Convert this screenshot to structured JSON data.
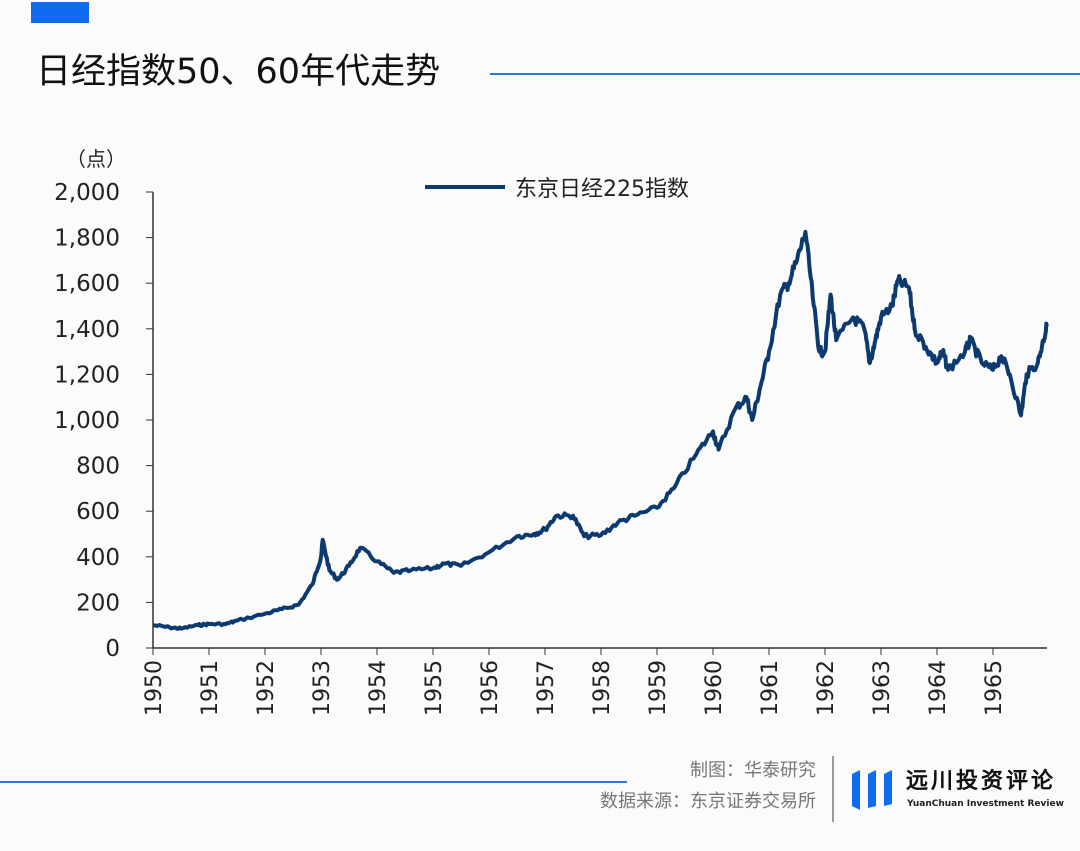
{
  "header": {
    "title": "日经指数50、60年代走势"
  },
  "footer": {
    "chart_by": "制图：华泰研究",
    "source": "数据来源：东京证券交易所",
    "logo_cn": "远川投资评论",
    "logo_en": "YuanChuan Investment Review"
  },
  "colors": {
    "accent": "#0f6cf0",
    "series": "#0d3a6e"
  },
  "chart_data": {
    "type": "line",
    "title": "",
    "xlabel": "",
    "ylabel": "（点）",
    "xlim": [
      1950,
      1965.96
    ],
    "ylim": [
      0,
      2000
    ],
    "grid": false,
    "legend": "top-center",
    "x_ticks": [
      "1950",
      "1951",
      "1952",
      "1953",
      "1954",
      "1955",
      "1956",
      "1957",
      "1958",
      "1959",
      "1960",
      "1961",
      "1962",
      "1963",
      "1964",
      "1965"
    ],
    "y_ticks": [
      "0",
      "200",
      "400",
      "600",
      "800",
      "1,000",
      "1,200",
      "1,400",
      "1,600",
      "1,800",
      "2,000"
    ],
    "series": [
      {
        "name": "东京日经225指数",
        "x": [
          1950.0,
          1950.3,
          1950.5,
          1950.8,
          1951.0,
          1951.3,
          1951.5,
          1952.0,
          1952.3,
          1952.6,
          1952.85,
          1953.0,
          1953.03,
          1953.15,
          1953.3,
          1953.5,
          1953.7,
          1954.0,
          1954.3,
          1954.6,
          1955.0,
          1955.2,
          1955.5,
          1956.0,
          1956.5,
          1956.8,
          1957.0,
          1957.2,
          1957.5,
          1957.7,
          1958.0,
          1958.3,
          1958.6,
          1959.0,
          1959.3,
          1959.7,
          1960.0,
          1960.1,
          1960.4,
          1960.6,
          1960.7,
          1960.85,
          1961.0,
          1961.2,
          1961.35,
          1961.5,
          1961.65,
          1961.8,
          1961.9,
          1962.0,
          1962.1,
          1962.2,
          1962.5,
          1962.7,
          1962.8,
          1962.9,
          1963.0,
          1963.2,
          1963.3,
          1963.5,
          1963.6,
          1963.8,
          1964.0,
          1964.1,
          1964.2,
          1964.5,
          1964.6,
          1964.8,
          1965.0,
          1965.15,
          1965.3,
          1965.5,
          1965.6,
          1965.8,
          1965.9,
          1965.96
        ],
        "y": [
          100,
          90,
          85,
          100,
          105,
          105,
          120,
          150,
          170,
          190,
          280,
          400,
          474,
          340,
          300,
          360,
          440,
          380,
          330,
          340,
          350,
          370,
          360,
          420,
          490,
          500,
          520,
          580,
          580,
          490,
          495,
          550,
          580,
          615,
          700,
          850,
          950,
          870,
          1050,
          1100,
          1000,
          1150,
          1300,
          1550,
          1600,
          1700,
          1825,
          1500,
          1300,
          1300,
          1550,
          1350,
          1450,
          1400,
          1250,
          1350,
          1450,
          1500,
          1610,
          1580,
          1400,
          1320,
          1250,
          1300,
          1220,
          1300,
          1350,
          1250,
          1220,
          1280,
          1200,
          1020,
          1200,
          1250,
          1350,
          1410
        ]
      }
    ]
  }
}
